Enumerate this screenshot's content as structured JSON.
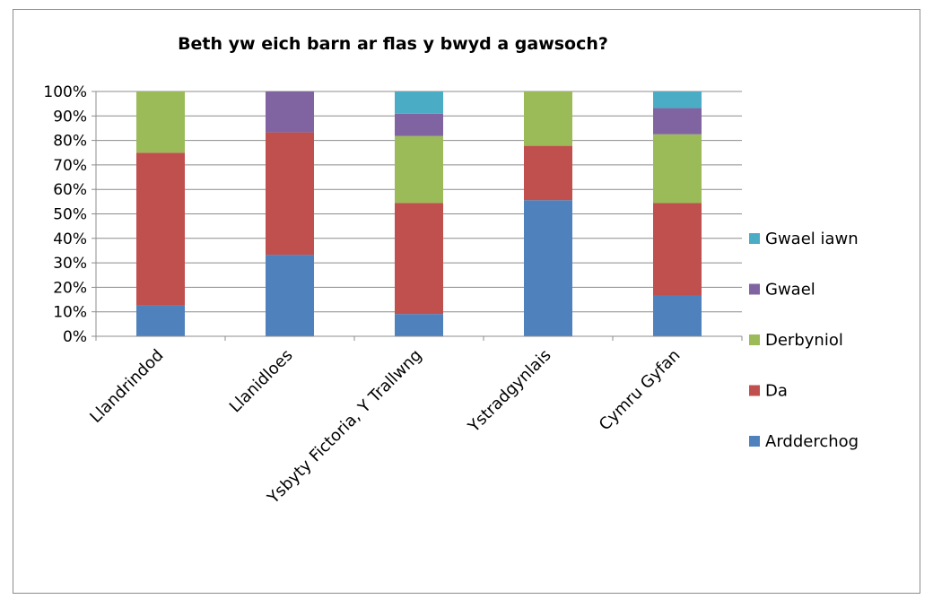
{
  "chart_data": {
    "type": "bar",
    "stacked": "percent",
    "title": "Beth yw eich barn ar flas y bwyd a gawsoch?",
    "xlabel": "",
    "ylabel": "",
    "ylim": [
      0,
      100
    ],
    "yticks": [
      "0%",
      "10%",
      "20%",
      "30%",
      "40%",
      "50%",
      "60%",
      "70%",
      "80%",
      "90%",
      "100%"
    ],
    "grid": true,
    "legend_position": "right",
    "categories": [
      "Llandrindod",
      "Llanidloes",
      "Ysbyty Fictoria, Y Trallwng",
      "Ystradgynlais",
      "Cymru Gyfan"
    ],
    "series": [
      {
        "name": "Ardderchog",
        "color": "#4f81bd",
        "values": [
          12.5,
          33.3,
          9.1,
          55.6,
          16.5
        ]
      },
      {
        "name": "Da",
        "color": "#c0504d",
        "values": [
          62.5,
          50.0,
          45.4,
          22.2,
          37.9
        ]
      },
      {
        "name": "Derbyniol",
        "color": "#9bbb59",
        "values": [
          25.0,
          0,
          27.3,
          22.2,
          28.1
        ]
      },
      {
        "name": "Gwael",
        "color": "#8064a2",
        "values": [
          0,
          16.7,
          9.1,
          0,
          10.7
        ]
      },
      {
        "name": "Gwael iawn",
        "color": "#4bacc6",
        "values": [
          0,
          0,
          9.1,
          0,
          6.8
        ]
      }
    ]
  }
}
